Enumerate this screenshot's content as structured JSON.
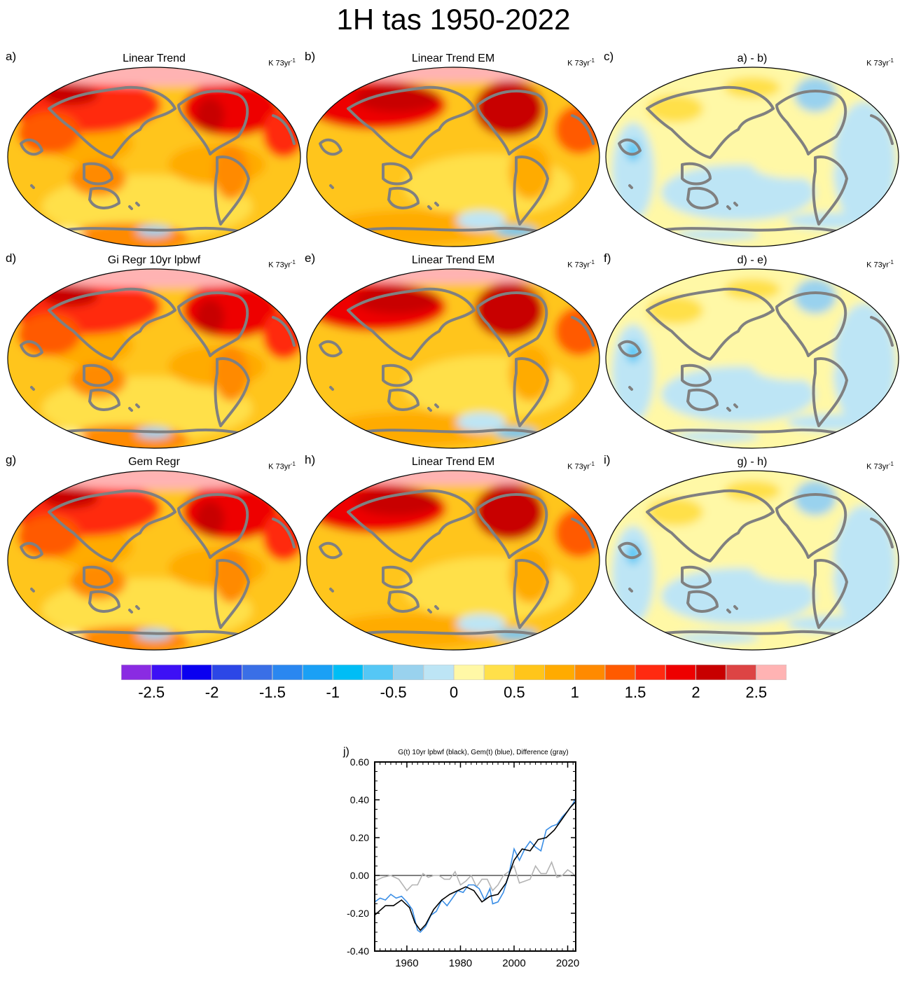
{
  "title": "1H tas 1950-2022",
  "units_label": "K 73yr",
  "units_exp": "-1",
  "panels": [
    {
      "letter": "a)",
      "title": "Linear Trend",
      "kind": "warm1"
    },
    {
      "letter": "b)",
      "title": "Linear Trend EM",
      "kind": "warm2"
    },
    {
      "letter": "c)",
      "title": "a) - b)",
      "kind": "diff"
    },
    {
      "letter": "d)",
      "title": "Gi Regr 10yr lpbwf",
      "kind": "warm1"
    },
    {
      "letter": "e)",
      "title": "Linear Trend EM",
      "kind": "warm2"
    },
    {
      "letter": "f)",
      "title": "d) - e)",
      "kind": "diff"
    },
    {
      "letter": "g)",
      "title": "Gem Regr",
      "kind": "warm1"
    },
    {
      "letter": "h)",
      "title": "Linear Trend EM",
      "kind": "warm2"
    },
    {
      "letter": "i)",
      "title": "g) - h)",
      "kind": "diff"
    }
  ],
  "colors": {
    "land": "#808080",
    "palette": [
      "#8a2be2",
      "#3d10f5",
      "#0a00f0",
      "#2c47e6",
      "#3a6fe6",
      "#2a87f0",
      "#1aa0f5",
      "#00bdf5",
      "#55c7f5",
      "#99d2ee",
      "#bde5f5",
      "#fff8a6",
      "#ffe04a",
      "#ffc51a",
      "#ffab00",
      "#ff8a00",
      "#ff5a00",
      "#ff2a10",
      "#ee0000",
      "#c80000",
      "#dd4444",
      "#ffb3b3"
    ]
  },
  "colorbar": {
    "labels": [
      "-2.5",
      "-2",
      "-1.5",
      "-1",
      "-0.5",
      "0",
      "0.5",
      "1",
      "1.5",
      "2",
      "2.5"
    ]
  },
  "chart_data": {
    "type": "line",
    "panel_letter": "j)",
    "title": "G(t)  10yr lpbwf (black), Gem(t) (blue), Difference (gray)",
    "xlim": [
      1948,
      2023
    ],
    "ylim": [
      -0.4,
      0.6
    ],
    "xticks": [
      1960,
      1980,
      2000,
      2020
    ],
    "yticks": [
      -0.4,
      -0.2,
      0.0,
      0.2,
      0.4,
      0.6
    ],
    "ytick_labels": [
      "-0.40",
      "-0.20",
      "0.00",
      "0.20",
      "0.40",
      "0.60"
    ],
    "series": [
      {
        "color": "#000000",
        "x": [
          1948,
          1952,
          1955,
          1958,
          1961,
          1963,
          1965,
          1967,
          1970,
          1973,
          1976,
          1979,
          1982,
          1985,
          1988,
          1991,
          1994,
          1997,
          2000,
          2003,
          2006,
          2009,
          2012,
          2015,
          2018,
          2021,
          2023
        ],
        "y": [
          -0.21,
          -0.16,
          -0.16,
          -0.13,
          -0.17,
          -0.25,
          -0.29,
          -0.26,
          -0.18,
          -0.13,
          -0.1,
          -0.08,
          -0.06,
          -0.08,
          -0.14,
          -0.11,
          -0.1,
          -0.04,
          0.08,
          0.14,
          0.13,
          0.19,
          0.2,
          0.24,
          0.3,
          0.36,
          0.39
        ]
      },
      {
        "color": "#3a8ee6",
        "x": [
          1948,
          1950,
          1952,
          1954,
          1956,
          1958,
          1960,
          1962,
          1964,
          1965,
          1967,
          1969,
          1971,
          1973,
          1975,
          1977,
          1979,
          1981,
          1983,
          1985,
          1987,
          1989,
          1991,
          1992,
          1994,
          1996,
          1998,
          2000,
          2002,
          2004,
          2006,
          2008,
          2010,
          2012,
          2014,
          2016,
          2018,
          2020,
          2022,
          2023
        ],
        "y": [
          -0.14,
          -0.12,
          -0.13,
          -0.1,
          -0.12,
          -0.11,
          -0.14,
          -0.18,
          -0.29,
          -0.3,
          -0.27,
          -0.21,
          -0.19,
          -0.13,
          -0.16,
          -0.12,
          -0.08,
          -0.09,
          -0.05,
          -0.05,
          -0.07,
          -0.13,
          -0.07,
          -0.15,
          -0.14,
          -0.09,
          0.0,
          0.14,
          0.08,
          0.14,
          0.18,
          0.15,
          0.13,
          0.24,
          0.26,
          0.27,
          0.31,
          0.34,
          0.38,
          0.41
        ]
      },
      {
        "color": "#b4b4b4",
        "x": [
          1948,
          1951,
          1954,
          1957,
          1960,
          1962,
          1964,
          1966,
          1968,
          1970,
          1972,
          1974,
          1976,
          1978,
          1980,
          1982,
          1984,
          1986,
          1988,
          1990,
          1992,
          1994,
          1996,
          1998,
          2000,
          2002,
          2004,
          2006,
          2008,
          2010,
          2012,
          2014,
          2016,
          2018,
          2020,
          2022,
          2023
        ],
        "y": [
          -0.03,
          -0.01,
          0.0,
          -0.02,
          -0.08,
          -0.05,
          -0.05,
          0.01,
          -0.01,
          0.0,
          0.0,
          -0.02,
          -0.02,
          0.02,
          -0.05,
          -0.03,
          0.0,
          -0.06,
          -0.02,
          -0.02,
          -0.08,
          -0.05,
          0.0,
          0.02,
          0.05,
          -0.04,
          -0.03,
          -0.02,
          0.05,
          0.01,
          0.01,
          0.07,
          -0.01,
          0.0,
          0.03,
          0.01,
          -0.01
        ]
      }
    ]
  }
}
